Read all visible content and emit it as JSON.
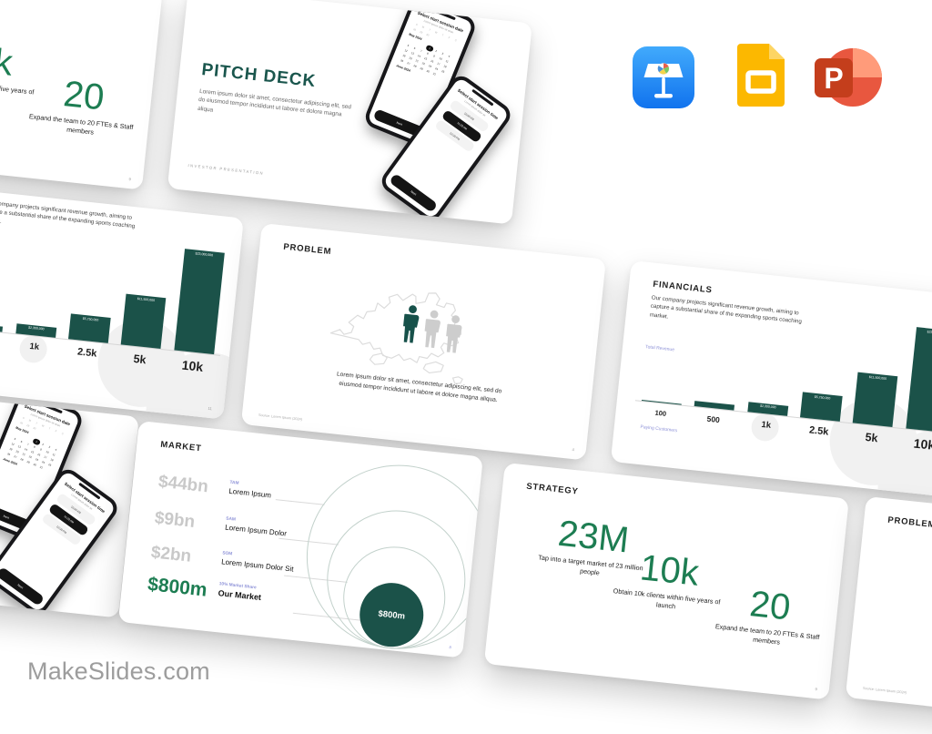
{
  "page": {
    "brand": "MakeSlides.com"
  },
  "colors": {
    "accent_teal": "#1b5249",
    "accent_green": "#1d7d52",
    "label_purple": "#8f93d8",
    "amount_gray": "#c9c9c9"
  },
  "icons": [
    {
      "name": "keynote-app-icon",
      "label": "Apple Keynote"
    },
    {
      "name": "google-slides-app-icon",
      "label": "Google Slides"
    },
    {
      "name": "powerpoint-app-icon",
      "label": "Microsoft PowerPoint"
    }
  ],
  "slides": {
    "cover": {
      "title": "PITCH DECK",
      "body": "Lorem ipsum dolor sit amet, consectetur adipiscing elit, sed do eiusmod tempor incididunt ut labore et dolore magna aliqua",
      "footer": "INVESTOR  PRESENTATION",
      "phone_date": {
        "title": "Select start session date",
        "subtitle": "Lorem ipsum dolor sit amet",
        "weekdays": [
          "S",
          "M",
          "T",
          "W",
          "T",
          "F",
          "S"
        ],
        "prev_days": [
          "28",
          "29",
          "30"
        ],
        "month": "May 2024",
        "days_in_month": 31,
        "start_offset": 3,
        "selected_day": 1,
        "next_month": "June 2024",
        "button": "Next"
      },
      "phone_time": {
        "title": "Select start session time",
        "subtitle": "Lorem ipsum dolor sit",
        "options": [
          "10:00 AM",
          "11:00 AM",
          "12:00 PM"
        ],
        "selected_index": 1,
        "button": "Next"
      }
    },
    "problem": {
      "title": "PROBLEM",
      "body": "Lorem ipsum dolor sit amet, consectetur adipiscing elit, sed do eiusmod tempor incididunt ut labore et dolore magna aliqua.",
      "source": "Source: Lorem Ipsum (2024)",
      "page_number": "4"
    },
    "financials": {
      "title": "FINANCIALS",
      "body": "Our company projects significant revenue growth, aiming to capture a substantial share of the expanding sports coaching market.",
      "y_label": "Total Revenue",
      "x_label": "Paying Customers",
      "page_number": "11"
    },
    "market": {
      "title": "MARKET",
      "rows": [
        {
          "amount": "$44bn",
          "tag": "TAM",
          "label": "Lorem Ipsum"
        },
        {
          "amount": "$9bn",
          "tag": "SAM",
          "label": "Lorem Ipsum Dolor"
        },
        {
          "amount": "$2bn",
          "tag": "SOM",
          "label": "Lorem Ipsum Dolor Sit"
        },
        {
          "amount": "$800m",
          "tag": "10% Market Share",
          "label": "Our Market"
        }
      ],
      "bubble": "$800m",
      "page_number": "8"
    },
    "strategy": {
      "title": "STRATEGY",
      "stats": [
        {
          "value": "23M",
          "caption": "Tap into a target market of 23 million people"
        },
        {
          "value": "10k",
          "caption": "Obtain 10k clients within five years of launch"
        },
        {
          "value": "20",
          "caption": "Expand the team to 20 FTEs & Staff members"
        }
      ],
      "page_number": "9"
    }
  },
  "chart_data": [
    {
      "type": "bar",
      "title": "FINANCIALS",
      "categories": [
        "100",
        "500",
        "1k",
        "2.5k",
        "5k",
        "10k"
      ],
      "values": [
        230000,
        1150000,
        2300000,
        5750000,
        11500000,
        23000000
      ],
      "value_labels": [
        "$230,000",
        "$1,150,000",
        "$2,300,000",
        "$5,750,000",
        "$11,500,000",
        "$23,000,000"
      ],
      "xlabel": "Paying Customers",
      "ylabel": "Total Revenue",
      "ylim": [
        0,
        23000000
      ],
      "grid": false,
      "bar_color": "#1b5249"
    },
    {
      "type": "nested-circles",
      "title": "MARKET",
      "rings": [
        {
          "label": "TAM",
          "value": "$44bn"
        },
        {
          "label": "SAM",
          "value": "$9bn"
        },
        {
          "label": "SOM",
          "value": "$2bn"
        },
        {
          "label": "10% Market Share - Our Market",
          "value": "$800m"
        }
      ]
    }
  ]
}
